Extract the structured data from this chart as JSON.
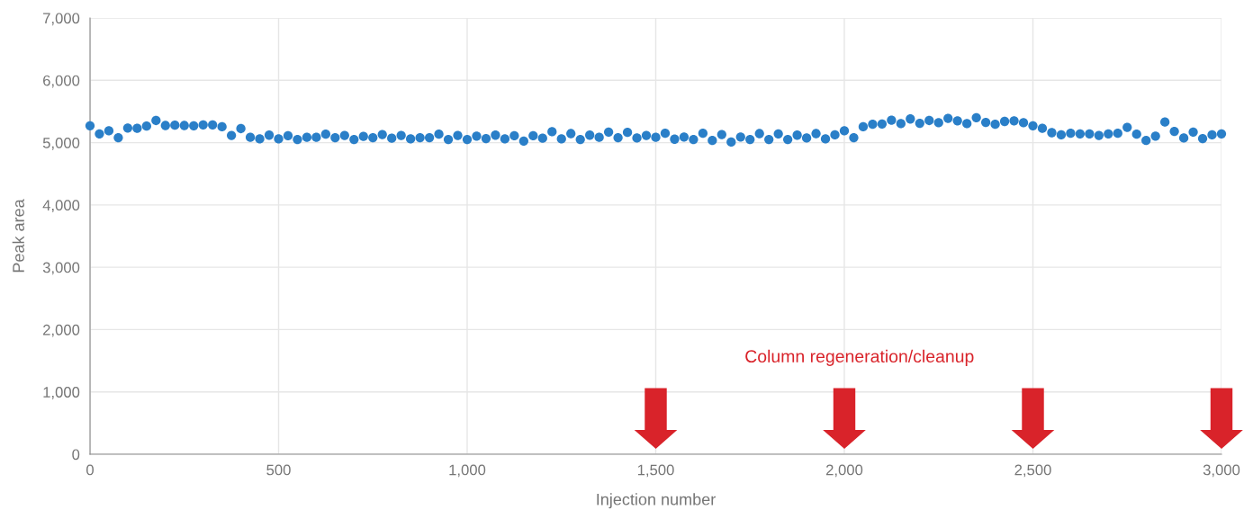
{
  "chart_data": {
    "type": "scatter",
    "xlabel": "Injection number",
    "ylabel": "Peak area",
    "x": [
      0,
      25,
      50,
      75,
      100,
      125,
      150,
      175,
      200,
      225,
      250,
      275,
      300,
      325,
      350,
      375,
      400,
      425,
      450,
      475,
      500,
      525,
      550,
      575,
      600,
      625,
      650,
      675,
      700,
      725,
      750,
      775,
      800,
      825,
      850,
      875,
      900,
      925,
      950,
      975,
      1000,
      1025,
      1050,
      1075,
      1100,
      1125,
      1150,
      1175,
      1200,
      1225,
      1250,
      1275,
      1300,
      1325,
      1350,
      1375,
      1400,
      1425,
      1450,
      1475,
      1500,
      1525,
      1550,
      1575,
      1600,
      1625,
      1650,
      1675,
      1700,
      1725,
      1750,
      1775,
      1800,
      1825,
      1850,
      1875,
      1900,
      1925,
      1950,
      1975,
      2000,
      2025,
      2050,
      2075,
      2100,
      2125,
      2150,
      2175,
      2200,
      2225,
      2250,
      2275,
      2300,
      2325,
      2350,
      2375,
      2400,
      2425,
      2450,
      2475,
      2500,
      2525,
      2550,
      2575,
      2600,
      2625,
      2650,
      2675,
      2700,
      2725,
      2750,
      2775,
      2800,
      2825,
      2850,
      2875,
      2900,
      2925,
      2950,
      2975,
      3000
    ],
    "series": [
      {
        "color": "#2a7fc8",
        "values": [
          5270,
          5140,
          5190,
          5080,
          5235,
          5230,
          5265,
          5355,
          5275,
          5280,
          5275,
          5270,
          5285,
          5285,
          5255,
          5115,
          5225,
          5085,
          5060,
          5120,
          5060,
          5110,
          5050,
          5085,
          5085,
          5135,
          5080,
          5115,
          5050,
          5100,
          5080,
          5130,
          5070,
          5115,
          5060,
          5080,
          5080,
          5135,
          5050,
          5115,
          5050,
          5105,
          5065,
          5120,
          5060,
          5110,
          5025,
          5110,
          5070,
          5175,
          5060,
          5145,
          5050,
          5120,
          5085,
          5170,
          5080,
          5165,
          5075,
          5115,
          5085,
          5150,
          5055,
          5090,
          5050,
          5150,
          5035,
          5130,
          5010,
          5090,
          5050,
          5145,
          5050,
          5140,
          5050,
          5120,
          5075,
          5145,
          5060,
          5125,
          5190,
          5080,
          5255,
          5295,
          5300,
          5360,
          5305,
          5380,
          5310,
          5355,
          5320,
          5390,
          5350,
          5305,
          5400,
          5325,
          5295,
          5340,
          5350,
          5320,
          5270,
          5230,
          5160,
          5125,
          5150,
          5140,
          5140,
          5115,
          5140,
          5150,
          5245,
          5135,
          5035,
          5105,
          5330,
          5180,
          5075,
          5170,
          5065,
          5125,
          5140
        ]
      }
    ],
    "xlim": [
      0,
      3000
    ],
    "xticks": [
      0,
      {
        "value": 500,
        "label": "500"
      },
      {
        "value": 1000,
        "label": "1,000"
      },
      {
        "value": 1500,
        "label": "1,500"
      },
      {
        "value": 2000,
        "label": "2,000"
      },
      {
        "value": 2500,
        "label": "2,500"
      },
      {
        "value": 3000,
        "label": "3,000"
      }
    ],
    "ylim": [
      0,
      7000
    ],
    "yticks": [
      0,
      {
        "value": 1000,
        "label": "1,000"
      },
      {
        "value": 2000,
        "label": "2,000"
      },
      {
        "value": 3000,
        "label": "3,000"
      },
      {
        "value": 4000,
        "label": "4,000"
      },
      {
        "value": 5000,
        "label": "5,000"
      },
      {
        "value": 6000,
        "label": "6,000"
      },
      {
        "value": 7000,
        "label": "7,000"
      }
    ],
    "grid": true,
    "marker": "circle",
    "annotations": [
      "Column regeneration/cleanup"
    ]
  }
}
